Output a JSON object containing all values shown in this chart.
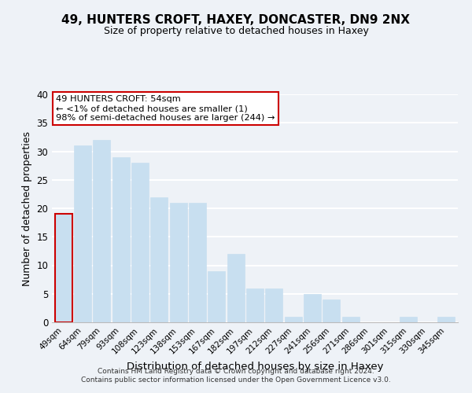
{
  "title": "49, HUNTERS CROFT, HAXEY, DONCASTER, DN9 2NX",
  "subtitle": "Size of property relative to detached houses in Haxey",
  "xlabel": "Distribution of detached houses by size in Haxey",
  "ylabel": "Number of detached properties",
  "bar_labels": [
    "49sqm",
    "64sqm",
    "79sqm",
    "93sqm",
    "108sqm",
    "123sqm",
    "138sqm",
    "153sqm",
    "167sqm",
    "182sqm",
    "197sqm",
    "212sqm",
    "227sqm",
    "241sqm",
    "256sqm",
    "271sqm",
    "286sqm",
    "301sqm",
    "315sqm",
    "330sqm",
    "345sqm"
  ],
  "bar_values": [
    19,
    31,
    32,
    29,
    28,
    22,
    21,
    21,
    9,
    12,
    6,
    6,
    1,
    5,
    4,
    1,
    0,
    0,
    1,
    0,
    1
  ],
  "bar_color": "#c8dff0",
  "highlight_bar_index": 0,
  "highlight_bar_edge_color": "#cc0000",
  "annotation_box_text": "49 HUNTERS CROFT: 54sqm\n← <1% of detached houses are smaller (1)\n98% of semi-detached houses are larger (244) →",
  "annotation_box_edge_color": "#cc0000",
  "annotation_box_facecolor": "white",
  "ylim": [
    0,
    40
  ],
  "yticks": [
    0,
    5,
    10,
    15,
    20,
    25,
    30,
    35,
    40
  ],
  "background_color": "#eef2f7",
  "grid_color": "white",
  "footer_line1": "Contains HM Land Registry data © Crown copyright and database right 2024.",
  "footer_line2": "Contains public sector information licensed under the Open Government Licence v3.0."
}
